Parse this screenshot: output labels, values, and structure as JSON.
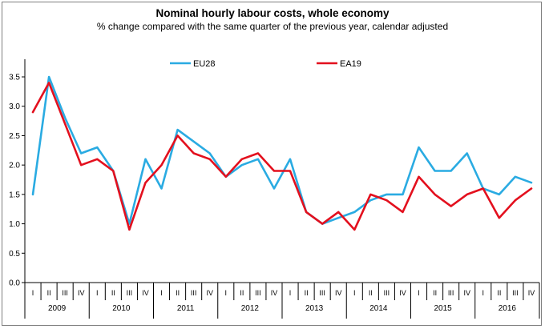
{
  "chart_data": {
    "type": "line",
    "title": "Nominal hourly labour costs, whole economy",
    "subtitle": "% change compared with the same quarter of the previous year, calendar adjusted",
    "xlabel": "",
    "ylabel": "",
    "ylim": [
      0.0,
      3.8
    ],
    "yticks": [
      "0.0",
      "0.5",
      "1.0",
      "1.5",
      "2.0",
      "2.5",
      "3.0",
      "3.5"
    ],
    "quarters": [
      "I",
      "II",
      "III",
      "IV"
    ],
    "years": [
      "2009",
      "2010",
      "2011",
      "2012",
      "2013",
      "2014",
      "2015",
      "2016"
    ],
    "legend_position": "top-center",
    "series": [
      {
        "name": "EU28",
        "color": "#2aabe2",
        "values": [
          1.5,
          3.5,
          2.8,
          2.2,
          2.3,
          1.9,
          1.0,
          2.1,
          1.6,
          2.6,
          2.4,
          2.2,
          1.8,
          2.0,
          2.1,
          1.6,
          2.1,
          1.2,
          1.0,
          1.1,
          1.2,
          1.4,
          1.5,
          1.5,
          2.3,
          1.9,
          1.9,
          2.2,
          1.6,
          1.5,
          1.8,
          1.7
        ]
      },
      {
        "name": "EA19",
        "color": "#e3101e",
        "values": [
          2.9,
          3.4,
          2.7,
          2.0,
          2.1,
          1.9,
          0.9,
          1.7,
          2.0,
          2.5,
          2.2,
          2.1,
          1.8,
          2.1,
          2.2,
          1.9,
          1.9,
          1.2,
          1.0,
          1.2,
          0.9,
          1.5,
          1.4,
          1.2,
          1.8,
          1.5,
          1.3,
          1.5,
          1.6,
          1.1,
          1.4,
          1.6
        ]
      }
    ]
  }
}
